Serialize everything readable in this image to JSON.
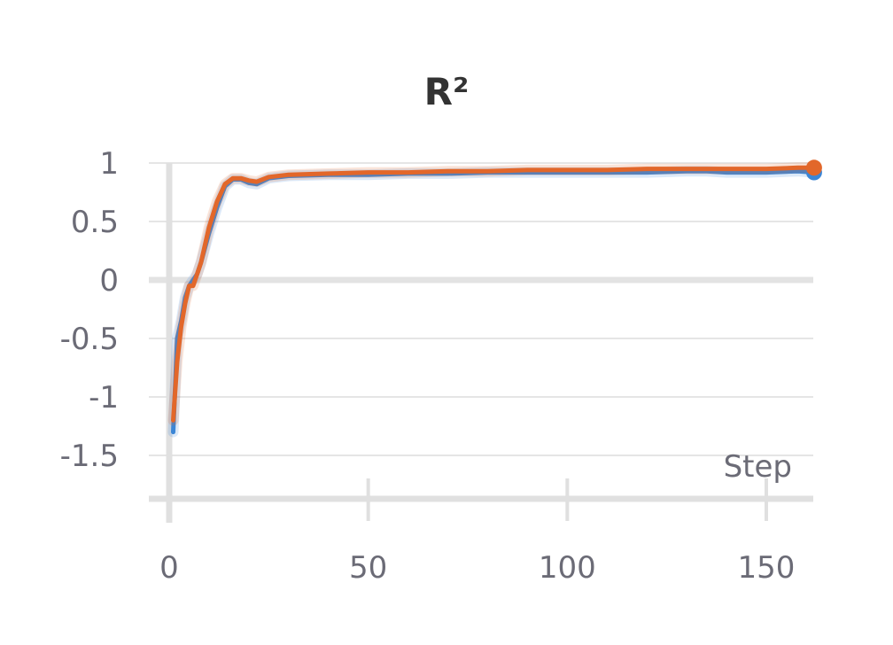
{
  "chart_data": {
    "type": "line",
    "title": "R²",
    "xlabel": "Step",
    "ylabel": "",
    "xlim": [
      0,
      162
    ],
    "ylim": [
      -1.75,
      1
    ],
    "xticks": [
      0,
      50,
      100,
      150
    ],
    "yticks": [
      1,
      0.5,
      0,
      -0.5,
      -1,
      -1.5
    ],
    "xtick_labels": [
      "0",
      "50",
      "100",
      "150"
    ],
    "ytick_labels": [
      "1",
      "0.5",
      "0",
      "-0.5",
      "-1",
      "-1.5"
    ],
    "grid": true,
    "colors": {
      "series_blue": "#3b86d6",
      "series_orange": "#e2672a",
      "grid": "#e5e5e5",
      "axis": "#e0e0e0"
    },
    "series": [
      {
        "color": "#3b86d6",
        "x": [
          1,
          2,
          3,
          4,
          5,
          6,
          7,
          8,
          10,
          12,
          14,
          16,
          18,
          20,
          22,
          25,
          30,
          40,
          50,
          60,
          70,
          80,
          90,
          100,
          110,
          120,
          130,
          135,
          140,
          150,
          158,
          162
        ],
        "y": [
          -1.3,
          -0.5,
          -0.35,
          -0.15,
          -0.05,
          0.0,
          0.05,
          0.15,
          0.4,
          0.62,
          0.8,
          0.86,
          0.86,
          0.83,
          0.82,
          0.87,
          0.89,
          0.9,
          0.9,
          0.91,
          0.91,
          0.92,
          0.92,
          0.92,
          0.92,
          0.92,
          0.93,
          0.93,
          0.92,
          0.92,
          0.93,
          0.92
        ]
      },
      {
        "color": "#e2672a",
        "x": [
          1,
          2,
          3,
          4,
          5,
          6,
          7,
          8,
          10,
          12,
          14,
          16,
          18,
          20,
          22,
          25,
          30,
          40,
          50,
          60,
          70,
          80,
          90,
          100,
          110,
          120,
          130,
          135,
          140,
          150,
          158,
          162
        ],
        "y": [
          -1.2,
          -0.7,
          -0.4,
          -0.2,
          -0.05,
          -0.05,
          0.05,
          0.15,
          0.45,
          0.67,
          0.82,
          0.87,
          0.87,
          0.85,
          0.84,
          0.88,
          0.9,
          0.91,
          0.92,
          0.92,
          0.93,
          0.93,
          0.94,
          0.94,
          0.94,
          0.95,
          0.95,
          0.95,
          0.95,
          0.95,
          0.96,
          0.96
        ]
      }
    ]
  }
}
